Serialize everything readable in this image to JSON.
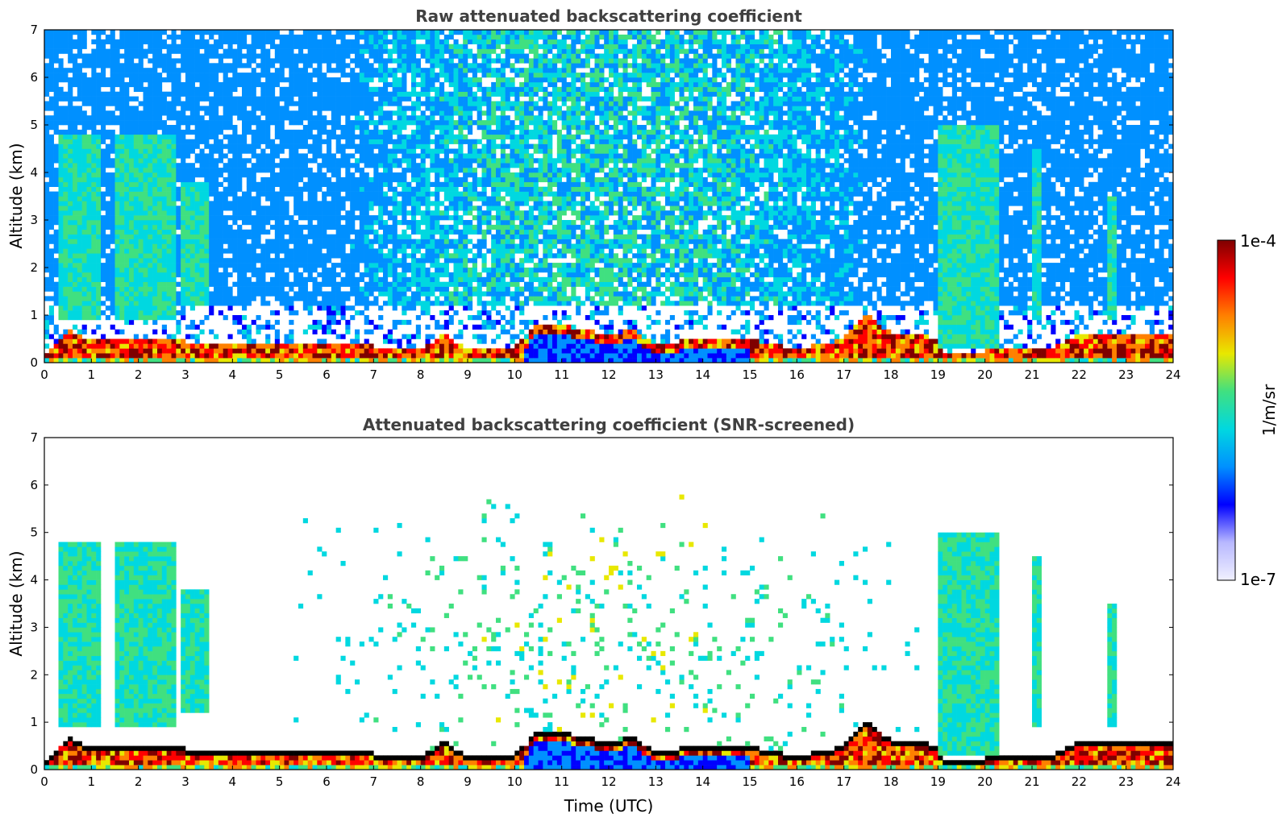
{
  "chart_data": [
    {
      "type": "heatmap",
      "title": "Raw attenuated backscattering coefficient",
      "xlabel": "",
      "ylabel": "Altitude (km)",
      "xlim": [
        0,
        24
      ],
      "ylim": [
        0,
        7
      ],
      "x_ticks": [
        "0",
        "1",
        "2",
        "3",
        "4",
        "5",
        "6",
        "7",
        "8",
        "9",
        "10",
        "11",
        "12",
        "13",
        "14",
        "15",
        "16",
        "17",
        "18",
        "19",
        "20",
        "21",
        "22",
        "23",
        "24"
      ],
      "y_ticks": [
        "0",
        "1",
        "2",
        "3",
        "4",
        "5",
        "6",
        "7"
      ],
      "screened": false,
      "features": [
        {
          "feature": "boundary_layer_top",
          "time_utc": [
            0,
            0.5,
            1,
            2,
            3,
            4,
            5,
            6,
            7,
            8,
            8.5,
            9,
            10,
            10.5,
            11,
            11.5,
            12,
            12.5,
            13,
            14,
            15,
            16,
            17,
            17.5,
            18,
            18.8,
            19.2,
            20,
            21,
            21.5,
            22,
            23,
            24
          ],
          "altitude_km": [
            0.2,
            0.7,
            0.45,
            0.5,
            0.45,
            0.4,
            0.4,
            0.4,
            0.35,
            0.3,
            0.6,
            0.3,
            0.3,
            0.8,
            0.8,
            0.7,
            0.6,
            0.7,
            0.4,
            0.5,
            0.5,
            0.3,
            0.5,
            1.1,
            0.6,
            0.6,
            0.2,
            0.25,
            0.3,
            0.35,
            0.6,
            0.6,
            0.6
          ]
        },
        {
          "feature": "aerosol_layer",
          "t_start": 0.3,
          "t_end": 1.2,
          "alt_bottom_km": 0.9,
          "alt_top_km": 4.8
        },
        {
          "feature": "aerosol_layer",
          "t_start": 1.5,
          "t_end": 2.8,
          "alt_bottom_km": 0.9,
          "alt_top_km": 4.8
        },
        {
          "feature": "aerosol_layer",
          "t_start": 2.9,
          "t_end": 3.5,
          "alt_bottom_km": 1.2,
          "alt_top_km": 3.8
        },
        {
          "feature": "aerosol_layer",
          "t_start": 19.0,
          "t_end": 20.3,
          "alt_bottom_km": 0.3,
          "alt_top_km": 5.0
        },
        {
          "feature": "aerosol_layer",
          "t_start": 21.0,
          "t_end": 21.2,
          "alt_bottom_km": 0.9,
          "alt_top_km": 4.5
        },
        {
          "feature": "aerosol_layer",
          "t_start": 22.6,
          "t_end": 22.8,
          "alt_bottom_km": 0.9,
          "alt_top_km": 3.5
        },
        {
          "feature": "solar_background_peak",
          "time_utc": 11,
          "altitude_km": 2
        }
      ]
    },
    {
      "type": "heatmap",
      "title": "Attenuated backscattering coefficient (SNR-screened)",
      "xlabel": "Time (UTC)",
      "ylabel": "Altitude (km)",
      "xlim": [
        0,
        24
      ],
      "ylim": [
        0,
        7
      ],
      "x_ticks": [
        "0",
        "1",
        "2",
        "3",
        "4",
        "5",
        "6",
        "7",
        "8",
        "9",
        "10",
        "11",
        "12",
        "13",
        "14",
        "15",
        "16",
        "17",
        "18",
        "19",
        "20",
        "21",
        "22",
        "23",
        "24"
      ],
      "y_ticks": [
        "0",
        "1",
        "2",
        "3",
        "4",
        "5",
        "6",
        "7"
      ],
      "screened": true
    }
  ],
  "colorbar": {
    "label": "1/m/sr",
    "max_label": "1e-4",
    "min_label": "1e-7",
    "scale": "log",
    "range": [
      1e-07,
      0.0001
    ],
    "colors": [
      "#f0f0ff",
      "#b8b8ff",
      "#0000ff",
      "#0090ff",
      "#00d8e0",
      "#40e080",
      "#e8e800",
      "#ff8000",
      "#ff0000",
      "#7f0000"
    ]
  }
}
